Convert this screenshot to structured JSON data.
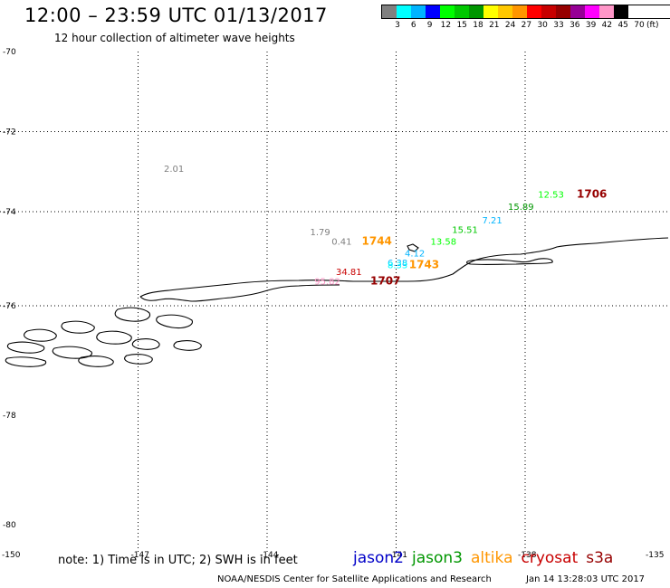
{
  "header": {
    "title": "12:00 – 23:59 UTC 01/13/2017",
    "subtitle": "12 hour collection of altimeter wave heights"
  },
  "color_scale": {
    "colors": [
      "#808080",
      "#00ffff",
      "#00b4ff",
      "#0000ff",
      "#00ff00",
      "#00c800",
      "#009600",
      "#ffff00",
      "#ffc800",
      "#ff9600",
      "#ff0000",
      "#c80000",
      "#960000",
      "#960096",
      "#ff00ff",
      "#ff96c8",
      "#000000"
    ],
    "labels": [
      "3",
      "6",
      "9",
      "12",
      "15",
      "18",
      "21",
      "24",
      "27",
      "30",
      "33",
      "36",
      "39",
      "42",
      "45",
      "70"
    ],
    "unit": "(ft)"
  },
  "map": {
    "lat_ticks": [
      "-70",
      "-72",
      "-74",
      "-76",
      "-78",
      "-80"
    ],
    "lon_ticks": [
      "-150",
      "-147",
      "-144",
      "-141",
      "-138",
      "-135"
    ],
    "observations": [
      {
        "text": "2.01",
        "color": "#808080",
        "lon": -146.4,
        "lat": -73.0,
        "bold": false
      },
      {
        "text": "1.79",
        "color": "#808080",
        "lon": -143.0,
        "lat": -74.5,
        "bold": false
      },
      {
        "text": "0.41",
        "color": "#808080",
        "lon": -142.5,
        "lat": -74.7,
        "bold": false
      },
      {
        "text": "1744",
        "color": "#ff9600",
        "lon": -141.8,
        "lat": -74.7,
        "bold": true
      },
      {
        "text": "4.12",
        "color": "#00b4ff",
        "lon": -140.8,
        "lat": -74.95,
        "bold": false
      },
      {
        "text": "6.38",
        "color": "#00b4ff",
        "lon": -141.2,
        "lat": -75.15,
        "bold": false
      },
      {
        "text": "8.33",
        "color": "#00ffff",
        "lon": -141.2,
        "lat": -75.2,
        "bold": false
      },
      {
        "text": "1743",
        "color": "#ff9600",
        "lon": -140.7,
        "lat": -75.2,
        "bold": true
      },
      {
        "text": "34.81",
        "color": "#c80000",
        "lon": -142.4,
        "lat": -75.35,
        "bold": false
      },
      {
        "text": "95.82",
        "color": "#ff96c8",
        "lon": -142.9,
        "lat": -75.55,
        "bold": false
      },
      {
        "text": "1707",
        "color": "#960000",
        "lon": -141.6,
        "lat": -75.55,
        "bold": true
      },
      {
        "text": "13.58",
        "color": "#00ff00",
        "lon": -140.2,
        "lat": -74.7,
        "bold": false
      },
      {
        "text": "15.51",
        "color": "#00c800",
        "lon": -139.7,
        "lat": -74.45,
        "bold": false
      },
      {
        "text": "7.21",
        "color": "#00b4ff",
        "lon": -139.0,
        "lat": -74.25,
        "bold": false
      },
      {
        "text": "15.89",
        "color": "#009600",
        "lon": -138.4,
        "lat": -73.95,
        "bold": false
      },
      {
        "text": "12.53",
        "color": "#00ff00",
        "lon": -137.7,
        "lat": -73.65,
        "bold": false
      },
      {
        "text": "1706",
        "color": "#960000",
        "lon": -136.8,
        "lat": -73.65,
        "bold": true
      }
    ]
  },
  "footer": {
    "note": "note: 1) Time is in UTC; 2) SWH is in feet",
    "satellites": [
      {
        "name": "jason2",
        "color": "#0000c8"
      },
      {
        "name": "jason3",
        "color": "#009600"
      },
      {
        "name": "altika",
        "color": "#ff9600"
      },
      {
        "name": "cryosat",
        "color": "#c80000"
      },
      {
        "name": "s3a",
        "color": "#960000"
      }
    ],
    "credit": "NOAA/NESDIS Center for Satellite Applications and Research",
    "date": "Jan 14 13:28:03 UTC 2017"
  }
}
